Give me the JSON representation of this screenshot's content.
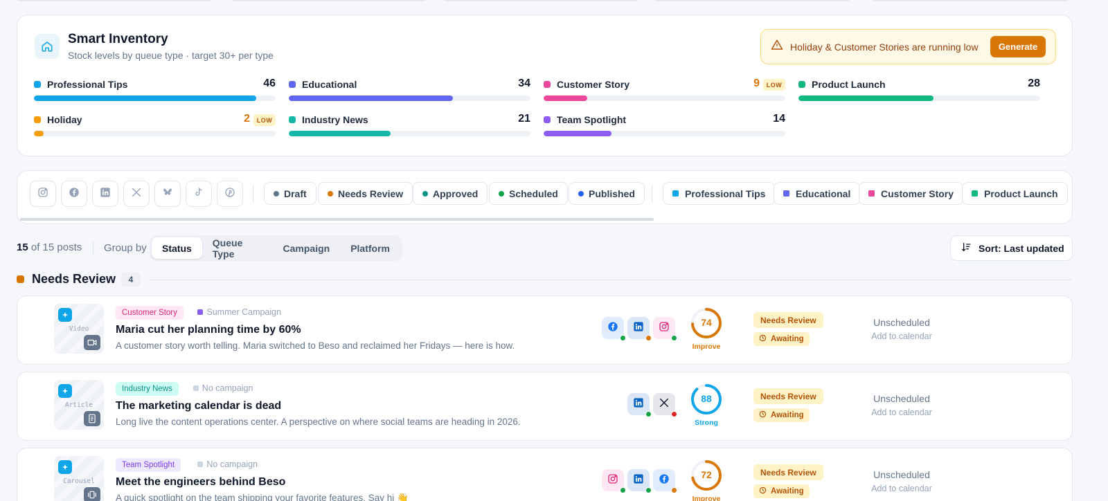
{
  "inventory": {
    "title": "Smart Inventory",
    "subtitle": "Stock levels by queue type · target 30+ per type",
    "alert_text": "Holiday & Customer Stories are running low",
    "generate_label": "Generate",
    "items": [
      {
        "name": "Professional Tips",
        "count": "46",
        "fill": 0.92,
        "color": "#0ea5e9",
        "low": false
      },
      {
        "name": "Educational",
        "count": "34",
        "fill": 0.68,
        "color": "#6366f1",
        "low": false
      },
      {
        "name": "Customer Story",
        "count": "9",
        "fill": 0.18,
        "color": "#ec4899",
        "low": true,
        "low_label": "LOW"
      },
      {
        "name": "Product Launch",
        "count": "28",
        "fill": 0.56,
        "color": "#10b981",
        "low": false
      },
      {
        "name": "Holiday",
        "count": "2",
        "fill": 0.04,
        "color": "#f59e0b",
        "low": true,
        "low_label": "LOW"
      },
      {
        "name": "Industry News",
        "count": "21",
        "fill": 0.42,
        "color": "#14b8a6",
        "low": false
      },
      {
        "name": "Team Spotlight",
        "count": "14",
        "fill": 0.28,
        "color": "#8b5cf6",
        "low": false
      }
    ]
  },
  "filters": {
    "platforms": [
      "instagram-icon",
      "facebook-icon",
      "linkedin-icon",
      "x-icon",
      "bluesky-icon",
      "tiktok-icon",
      "pinterest-icon"
    ],
    "statuses": [
      {
        "label": "Draft",
        "color": "#64748b"
      },
      {
        "label": "Needs Review",
        "color": "#d97706"
      },
      {
        "label": "Approved",
        "color": "#0d9488"
      },
      {
        "label": "Scheduled",
        "color": "#16a34a"
      },
      {
        "label": "Published",
        "color": "#2563eb"
      }
    ],
    "queues": [
      {
        "label": "Professional Tips",
        "color": "#0ea5e9"
      },
      {
        "label": "Educational",
        "color": "#6366f1"
      },
      {
        "label": "Customer Story",
        "color": "#ec4899"
      },
      {
        "label": "Product Launch",
        "color": "#10b981"
      }
    ]
  },
  "toolbar": {
    "count_shown": "15",
    "count_rest": " of 15 posts",
    "group_by_label": "Group by",
    "group_options": [
      "Status",
      "Queue Type",
      "Campaign",
      "Platform"
    ],
    "active_group": "Status",
    "sort_label": "Sort: Last updated"
  },
  "group": {
    "title": "Needs Review",
    "count": "4"
  },
  "posts": [
    {
      "format": "Video",
      "queue": "Customer Story",
      "queue_color": "#db2777",
      "queue_bg": "#fce7f3",
      "campaign": "Summer Campaign",
      "campaign_color": "#8b5cf6",
      "title": "Maria cut her planning time by 60%",
      "desc": "A customer story worth telling. Maria switched to Beso and reclaimed her Fridays — here is how.",
      "platforms": [
        {
          "icon": "facebook-icon",
          "status_color": "#16a34a"
        },
        {
          "icon": "linkedin-icon",
          "status_color": "#d97706"
        },
        {
          "icon": "instagram-icon",
          "status_color": "#16a34a"
        }
      ],
      "score": "74",
      "score_label": "Improve",
      "score_color": "#d97706",
      "score_frac": 0.74,
      "status": "Needs Review",
      "approval": "Awaiting",
      "schedule": "Unscheduled",
      "schedule_hint": "Add to calendar"
    },
    {
      "format": "Article",
      "queue": "Industry News",
      "queue_color": "#0d9488",
      "queue_bg": "#ccfbf1",
      "campaign": "No campaign",
      "campaign_color": "#cbd5e1",
      "title": "The marketing calendar is dead",
      "desc": "Long live the content operations center. A perspective on where social teams are heading in 2026.",
      "platforms": [
        {
          "icon": "linkedin-icon",
          "status_color": "#16a34a"
        },
        {
          "icon": "x-icon",
          "status_color": "#dc2626"
        }
      ],
      "score": "88",
      "score_label": "Strong",
      "score_color": "#0ea5e9",
      "score_frac": 0.88,
      "status": "Needs Review",
      "approval": "Awaiting",
      "schedule": "Unscheduled",
      "schedule_hint": "Add to calendar"
    },
    {
      "format": "Carousel",
      "queue": "Team Spotlight",
      "queue_color": "#7c3aed",
      "queue_bg": "#ede9fe",
      "campaign": "No campaign",
      "campaign_color": "#cbd5e1",
      "title": "Meet the engineers behind Beso",
      "desc": "A quick spotlight on the team shipping your favorite features. Say hi 👋",
      "platforms": [
        {
          "icon": "instagram-icon",
          "status_color": "#16a34a"
        },
        {
          "icon": "linkedin-icon",
          "status_color": "#16a34a"
        },
        {
          "icon": "facebook-icon",
          "status_color": "#d97706"
        }
      ],
      "score": "72",
      "score_label": "Improve",
      "score_color": "#d97706",
      "score_frac": 0.72,
      "status": "Needs Review",
      "approval": "Awaiting",
      "schedule": "Unscheduled",
      "schedule_hint": "Add to calendar"
    }
  ]
}
